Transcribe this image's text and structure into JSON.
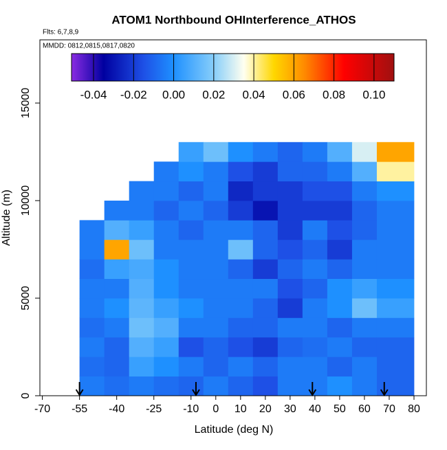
{
  "chart_data": {
    "type": "heatmap",
    "title": "ATOM1 Northbound OHInterference_ATHOS",
    "flights_label": "Flts: 6,7,8,9",
    "dates_label": "MMDD: 0812,0815,0817,0820",
    "x_label": "Latitude (deg N)",
    "y_label": "Altitude (m)",
    "xlim": [
      -71,
      85
    ],
    "xticks": [
      -70,
      -55,
      -40,
      -25,
      -10,
      0,
      10,
      20,
      30,
      40,
      50,
      60,
      70,
      80
    ],
    "ylim": [
      0,
      18240
    ],
    "yticks": [
      0,
      5000,
      10000,
      15000
    ],
    "x_edges": [
      -55,
      -45,
      -35,
      -25,
      -15,
      -5,
      5,
      15,
      25,
      35,
      45,
      55,
      65,
      80
    ],
    "y_edges": [
      0,
      1000,
      2000,
      3000,
      4000,
      5000,
      6000,
      7000,
      8000,
      9000,
      10000,
      11000,
      12000,
      13000
    ],
    "z": [
      [
        -0.005,
        -0.008,
        -0.005,
        -0.008,
        -0.01,
        -0.005,
        -0.01,
        -0.015,
        -0.005,
        -0.005,
        0.0,
        -0.005,
        -0.01
      ],
      [
        -0.008,
        -0.01,
        0.005,
        0.0,
        -0.005,
        -0.01,
        -0.005,
        -0.01,
        -0.005,
        -0.005,
        -0.01,
        -0.005,
        -0.01
      ],
      [
        -0.005,
        -0.01,
        0.01,
        0.005,
        -0.015,
        -0.01,
        -0.015,
        -0.02,
        -0.01,
        -0.008,
        -0.005,
        -0.01,
        -0.01
      ],
      [
        -0.008,
        -0.005,
        0.015,
        0.01,
        -0.005,
        -0.005,
        -0.01,
        -0.01,
        -0.005,
        -0.005,
        -0.01,
        -0.005,
        -0.005
      ],
      [
        -0.005,
        0.0,
        0.012,
        0.005,
        0.0,
        -0.005,
        -0.005,
        -0.01,
        -0.02,
        -0.005,
        0.0,
        0.015,
        0.005
      ],
      [
        -0.005,
        -0.005,
        0.01,
        0.0,
        -0.005,
        -0.005,
        -0.005,
        -0.005,
        -0.015,
        -0.01,
        0.0,
        0.005,
        0.0
      ],
      [
        -0.008,
        0.005,
        0.008,
        0.0,
        -0.005,
        -0.005,
        -0.01,
        -0.02,
        -0.01,
        -0.005,
        -0.01,
        -0.005,
        -0.005
      ],
      [
        -0.005,
        0.06,
        0.015,
        -0.005,
        -0.005,
        -0.005,
        0.015,
        -0.01,
        -0.015,
        -0.01,
        -0.02,
        -0.005,
        -0.005
      ],
      [
        -0.005,
        0.01,
        0.005,
        -0.005,
        -0.01,
        -0.005,
        -0.005,
        -0.01,
        -0.02,
        -0.005,
        -0.015,
        -0.01,
        -0.005
      ],
      [
        null,
        -0.005,
        -0.005,
        -0.01,
        -0.005,
        -0.01,
        -0.02,
        -0.03,
        -0.02,
        -0.02,
        -0.02,
        -0.01,
        -0.005
      ],
      [
        null,
        null,
        -0.005,
        -0.005,
        -0.01,
        -0.005,
        -0.025,
        -0.02,
        -0.02,
        -0.015,
        -0.015,
        -0.005,
        0.0
      ],
      [
        null,
        null,
        null,
        -0.005,
        0.0,
        -0.005,
        -0.015,
        -0.02,
        -0.01,
        -0.01,
        -0.005,
        0.01,
        0.04
      ],
      [
        null,
        null,
        null,
        null,
        0.005,
        0.015,
        0.0,
        -0.005,
        -0.01,
        -0.005,
        0.01,
        0.03,
        0.06
      ]
    ],
    "colorbar_lim": [
      -0.051,
      0.11
    ],
    "colorbar_ticks": [
      -0.04,
      -0.02,
      {
        "value": 0,
        "label": "0.00"
      },
      0.02,
      0.04,
      0.06,
      0.08,
      {
        "value": 0.1,
        "label": "0.10"
      }
    ],
    "colorscale": [
      {
        "value": -0.051,
        "color": "#8a2be2"
      },
      {
        "value": -0.035,
        "color": "#0000a0"
      },
      {
        "value": -0.015,
        "color": "#1e50e6"
      },
      {
        "value": 0.0,
        "color": "#1e90ff"
      },
      {
        "value": 0.02,
        "color": "#87cefa"
      },
      {
        "value": 0.035,
        "color": "#fffff0"
      },
      {
        "value": 0.05,
        "color": "#ffd700"
      },
      {
        "value": 0.065,
        "color": "#ff8c00"
      },
      {
        "value": 0.085,
        "color": "#ff0000"
      },
      {
        "value": 0.11,
        "color": "#a01010"
      }
    ],
    "flight_markers": [
      -55,
      -8,
      39,
      68
    ]
  }
}
